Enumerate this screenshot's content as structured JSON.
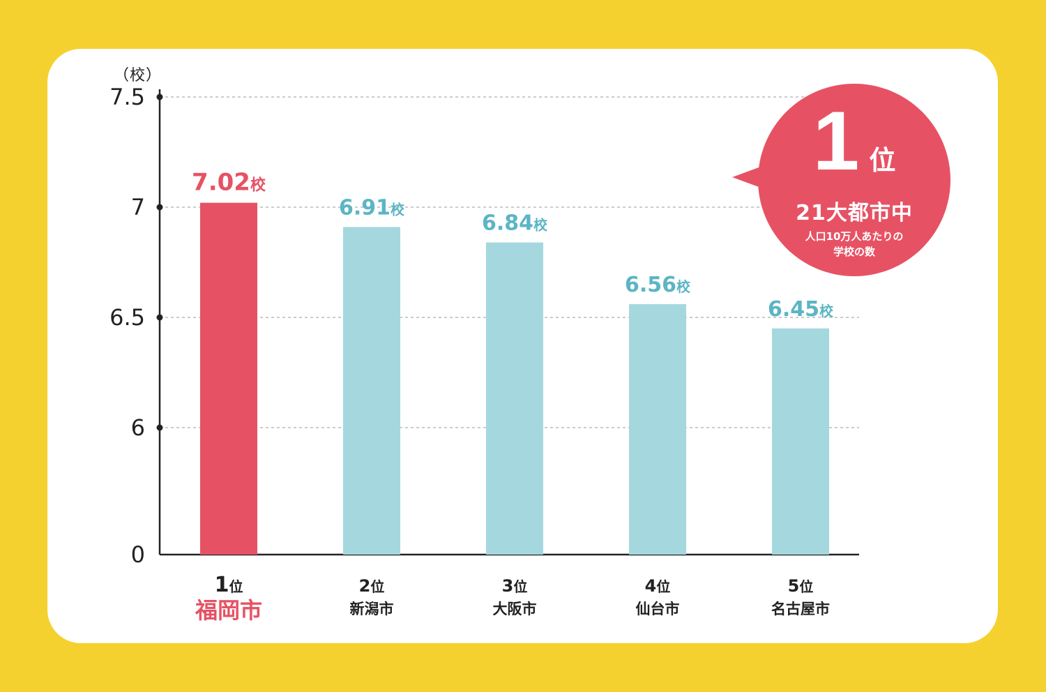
{
  "chart_data": {
    "type": "bar",
    "ylabel": "（校）",
    "yticks": [
      "7.5",
      "7",
      "6.5",
      "6",
      "0"
    ],
    "value_suffix": "校",
    "categories": [
      {
        "rank": "1",
        "rank_suffix": "位",
        "city": "福岡市",
        "value": 7.02,
        "value_label": "7.02",
        "highlight": true
      },
      {
        "rank": "2",
        "rank_suffix": "位",
        "city": "新潟市",
        "value": 6.91,
        "value_label": "6.91",
        "highlight": false
      },
      {
        "rank": "3",
        "rank_suffix": "位",
        "city": "大阪市",
        "value": 6.84,
        "value_label": "6.84",
        "highlight": false
      },
      {
        "rank": "4",
        "rank_suffix": "位",
        "city": "仙台市",
        "value": 6.56,
        "value_label": "6.56",
        "highlight": false
      },
      {
        "rank": "5",
        "rank_suffix": "位",
        "city": "名古屋市",
        "value": 6.45,
        "value_label": "6.45",
        "highlight": false
      }
    ],
    "axis_break": true,
    "grid": true,
    "colors": {
      "highlight": "#e65264",
      "default": "#a4d8de",
      "default_label": "#5bb5c4",
      "axis": "#222222",
      "grid": "#bbbbbb",
      "background": "#f4d12e"
    }
  },
  "badge": {
    "rank_number": "1",
    "rank_suffix": "位",
    "headline": "21大都市中",
    "subline1": "人口10万人あたりの",
    "subline2": "学校の数"
  }
}
